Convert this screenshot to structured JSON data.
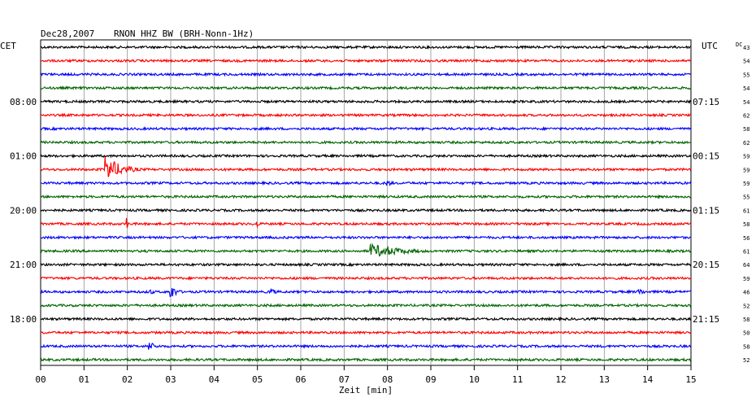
{
  "header": {
    "date_label": "Dec28,2007",
    "station_label": "RNON HHZ BW (BRH-Nonn-1Hz)",
    "left_tz": "CET",
    "right_tz": "UTC",
    "dc_label": "DC"
  },
  "chart_data": {
    "type": "line",
    "title": "Dec28,2007   RNON HHZ BW (BRH-Nonn-1Hz)",
    "xlabel": "Zeit [min]",
    "ylabel": "",
    "x_ticks": [
      "00",
      "01",
      "02",
      "03",
      "04",
      "05",
      "06",
      "07",
      "08",
      "09",
      "10",
      "11",
      "12",
      "13",
      "14",
      "15"
    ],
    "xlim": [
      0,
      15
    ],
    "grid": true,
    "left_time_labels": [
      "08:00",
      "01:00",
      "20:00",
      "21:00",
      "18:00"
    ],
    "right_time_labels": [
      "07:15",
      "00:15",
      "01:15",
      "20:15",
      "21:15"
    ],
    "dc_values": [
      "43",
      "54",
      "55",
      "54",
      "54",
      "62",
      "58",
      "62",
      "59",
      "59",
      "59",
      "55",
      "61",
      "58",
      "56",
      "61",
      "64",
      "59",
      "46",
      "52",
      "58",
      "50",
      "58",
      "52"
    ],
    "trace_colors": [
      "#000000",
      "#ff0000",
      "#0000ff",
      "#006400"
    ],
    "events": [
      {
        "trace": 9,
        "minute": 1.5,
        "amplitude": 16,
        "duration": 1.1
      },
      {
        "trace": 10,
        "minute": 8.0,
        "amplitude": 4,
        "duration": 0.4
      },
      {
        "trace": 12,
        "minute": 11.0,
        "amplitude": 4,
        "duration": 0.1
      },
      {
        "trace": 13,
        "minute": 2.0,
        "amplitude": 5,
        "duration": 0.1
      },
      {
        "trace": 13,
        "minute": 5.0,
        "amplitude": 4,
        "duration": 0.1
      },
      {
        "trace": 15,
        "minute": 7.6,
        "amplitude": 9,
        "duration": 2.2
      },
      {
        "trace": 18,
        "minute": 2.5,
        "amplitude": 5,
        "duration": 0.3
      },
      {
        "trace": 18,
        "minute": 3.0,
        "amplitude": 10,
        "duration": 0.4
      },
      {
        "trace": 18,
        "minute": 5.3,
        "amplitude": 5,
        "duration": 0.4
      },
      {
        "trace": 18,
        "minute": 13.8,
        "amplitude": 5,
        "duration": 0.4
      },
      {
        "trace": 22,
        "minute": 2.5,
        "amplitude": 6,
        "duration": 0.5
      }
    ]
  }
}
